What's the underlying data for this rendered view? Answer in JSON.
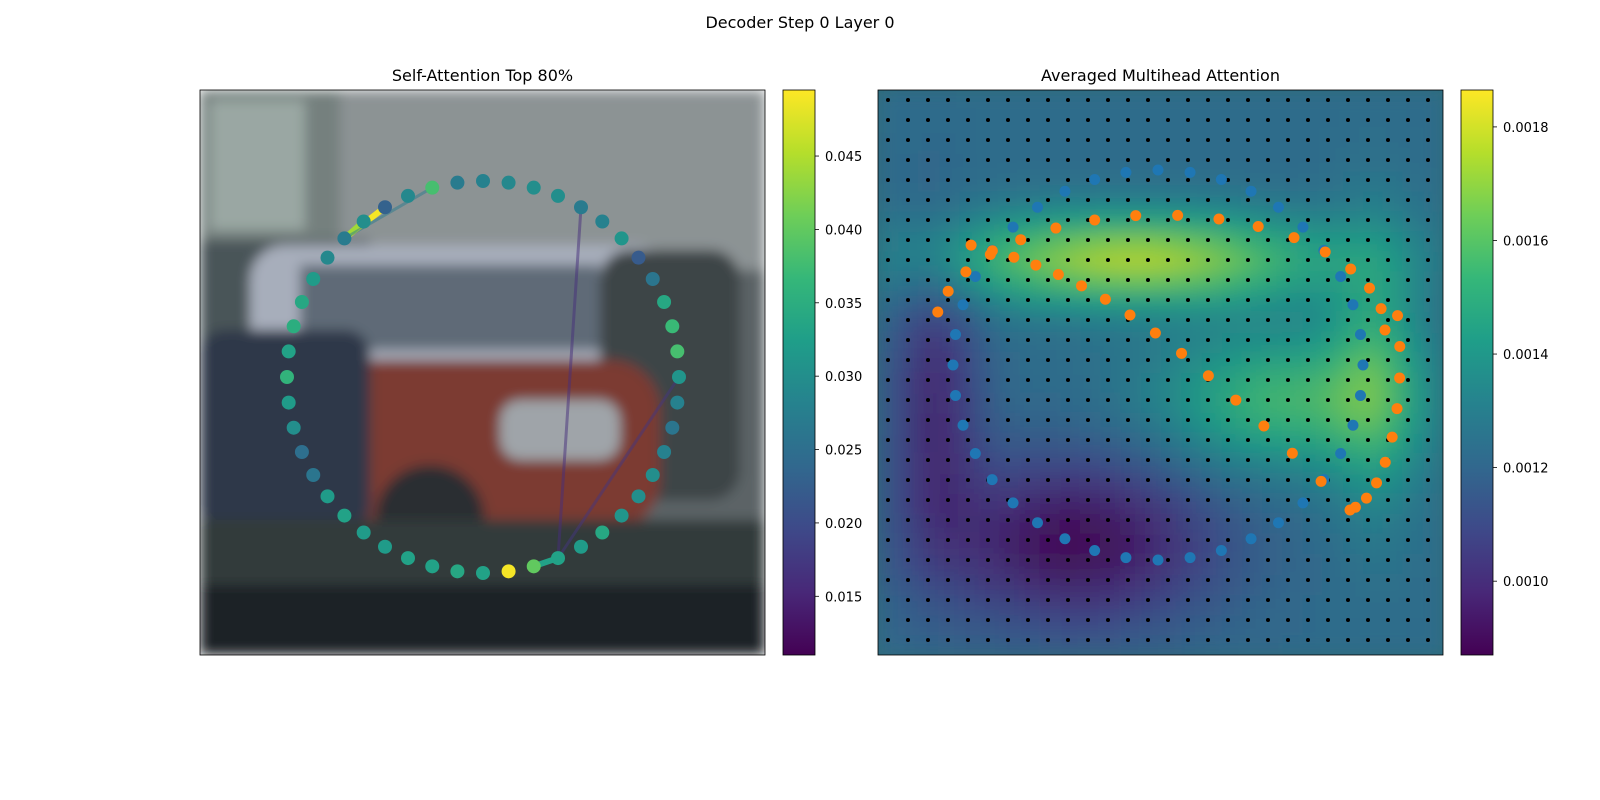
{
  "figure": {
    "title": "Decoder Step 0 Layer 0"
  },
  "colors": {
    "viridis": [
      "#440154",
      "#482878",
      "#3e4989",
      "#31688e",
      "#26828e",
      "#1f9e89",
      "#35b779",
      "#6ece58",
      "#b5de2b",
      "#fde725"
    ],
    "orange_points": "#ff7f0e",
    "blue_points": "#1f77b4",
    "grid_points": "#000000"
  },
  "chart_data": [
    {
      "type": "scatter",
      "title": "Self-Attention Top 80%",
      "description_of_marks": "48 query points around a circular contour drawn over a street photo; point color encodes self-attention weight",
      "colorbar": {
        "range": [
          0.011,
          0.0495
        ],
        "ticks": [
          0.015,
          0.02,
          0.025,
          0.03,
          0.035,
          0.04,
          0.045
        ],
        "tick_labels": [
          "0.015",
          "0.020",
          "0.025",
          "0.030",
          "0.035",
          "0.040",
          "0.045"
        ]
      },
      "point_count": 48,
      "point_weights": [
        0.028,
        0.029,
        0.03,
        0.03,
        0.027,
        0.028,
        0.031,
        0.022,
        0.026,
        0.034,
        0.037,
        0.038,
        0.031,
        0.028,
        0.026,
        0.028,
        0.03,
        0.03,
        0.031,
        0.034,
        0.032,
        0.033,
        0.04,
        0.049,
        0.033,
        0.034,
        0.033,
        0.033,
        0.032,
        0.032,
        0.033,
        0.032,
        0.026,
        0.025,
        0.03,
        0.032,
        0.036,
        0.033,
        0.035,
        0.034,
        0.032,
        0.029,
        0.027,
        0.03,
        0.023,
        0.029,
        0.038,
        0.027
      ],
      "edges": [
        {
          "from": 42,
          "to": 44,
          "weight": 0.049
        },
        {
          "from": 42,
          "to": 43,
          "weight": 0.044
        },
        {
          "from": 21,
          "to": 22,
          "weight": 0.033
        },
        {
          "from": 42,
          "to": 46,
          "weight": 0.027
        },
        {
          "from": 21,
          "to": 12,
          "weight": 0.017
        },
        {
          "from": 21,
          "to": 4,
          "weight": 0.016
        }
      ]
    },
    {
      "type": "heatmap",
      "title": "Averaged Multihead Attention",
      "colorbar": {
        "range": [
          0.00087,
          0.001865
        ],
        "ticks": [
          0.001,
          0.0012,
          0.0014,
          0.0016,
          0.0018
        ],
        "tick_labels": [
          "0.0010",
          "0.0012",
          "0.0014",
          "0.0016",
          "0.0018"
        ]
      },
      "grid": {
        "rows": 28,
        "cols": 28
      },
      "series": [
        {
          "color": "orange_points",
          "count": 42
        },
        {
          "color": "blue_points",
          "count": 40
        }
      ]
    }
  ]
}
